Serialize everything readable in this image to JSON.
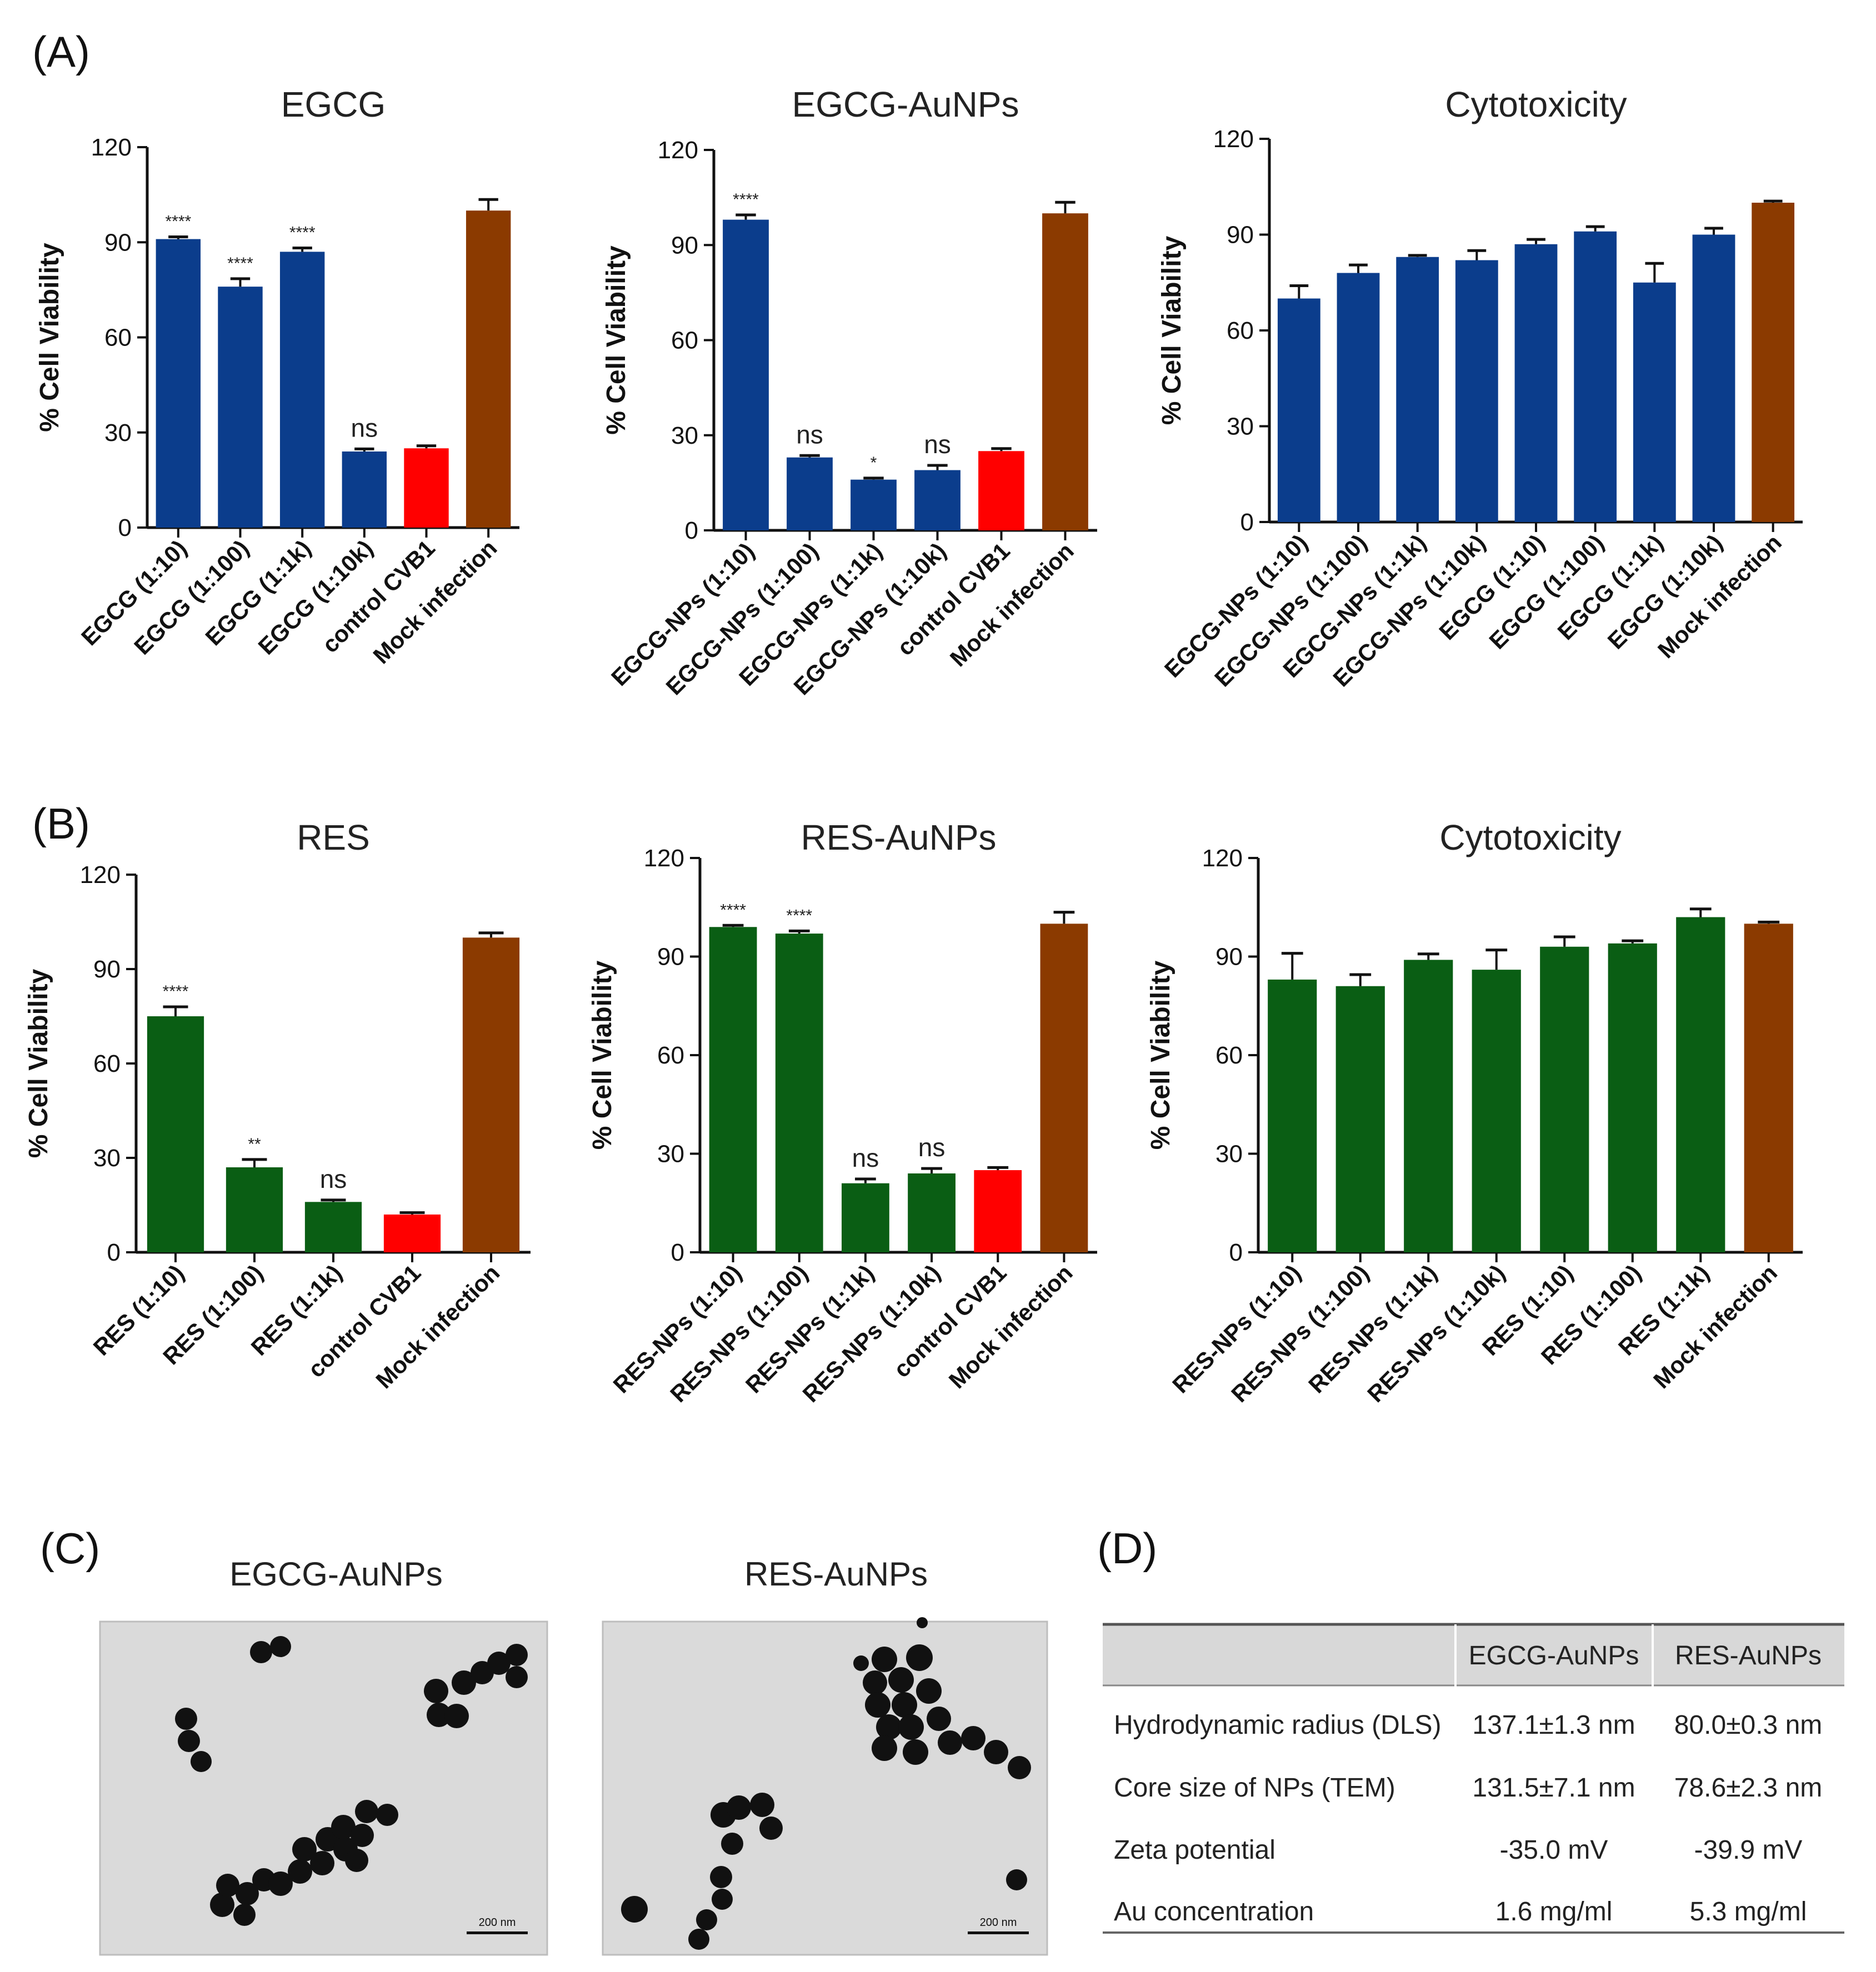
{
  "panels": {
    "a": "(A)",
    "b": "(B)",
    "c": "(C)",
    "d": "(D)"
  },
  "chart_data": [
    {
      "type": "bar",
      "title": "EGCG",
      "ylabel": "% Cell Viability",
      "ylim": [
        0,
        120
      ],
      "yticks": [
        0,
        30,
        60,
        90,
        120
      ],
      "categories": [
        "EGCG (1:10)",
        "EGCG (1:100)",
        "EGCG (1:1k)",
        "EGCG (1:10k)",
        "control CVB1",
        "Mock infection"
      ],
      "values": [
        91,
        76,
        87,
        24,
        25,
        100
      ],
      "errors": [
        0.7,
        2.5,
        1.2,
        0.8,
        0.8,
        3.5
      ],
      "bar_colors": [
        "#0b3d8c",
        "#0b3d8c",
        "#0b3d8c",
        "#0b3d8c",
        "#ff0000",
        "#8b3a00"
      ],
      "annotations": [
        "****",
        "****",
        "****",
        "ns",
        "",
        ""
      ]
    },
    {
      "type": "bar",
      "title": "EGCG-AuNPs",
      "ylabel": "% Cell Viability",
      "ylim": [
        0,
        120
      ],
      "yticks": [
        0,
        30,
        60,
        90,
        120
      ],
      "categories": [
        "EGCG-NPs (1:10)",
        "EGCG-NPs (1:100)",
        "EGCG-NPs (1:1k)",
        "EGCG-NPs (1:10k)",
        "control CVB1",
        "Mock infection"
      ],
      "values": [
        98,
        23,
        16,
        19,
        25,
        100
      ],
      "errors": [
        1.5,
        0.6,
        0.5,
        1.5,
        0.8,
        3.5
      ],
      "bar_colors": [
        "#0b3d8c",
        "#0b3d8c",
        "#0b3d8c",
        "#0b3d8c",
        "#ff0000",
        "#8b3a00"
      ],
      "annotations": [
        "****",
        "ns",
        "*",
        "ns",
        "",
        ""
      ]
    },
    {
      "type": "bar",
      "title": "Cytotoxicity",
      "ylabel": "% Cell Viability",
      "ylim": [
        0,
        120
      ],
      "yticks": [
        0,
        30,
        60,
        90,
        120
      ],
      "categories": [
        "EGCG-NPs (1:10)",
        "EGCG-NPs (1:100)",
        "EGCG-NPs (1:1k)",
        "EGCG-NPs (1:10k)",
        "EGCG (1:10)",
        "EGCG (1:100)",
        "EGCG (1:1k)",
        "EGCG (1:10k)",
        "Mock infection"
      ],
      "values": [
        70,
        78,
        83,
        82,
        87,
        91,
        75,
        90,
        100
      ],
      "errors": [
        4,
        2.5,
        0.5,
        3,
        1.5,
        1.5,
        6,
        2,
        0.5
      ],
      "bar_colors": [
        "#0b3d8c",
        "#0b3d8c",
        "#0b3d8c",
        "#0b3d8c",
        "#0b3d8c",
        "#0b3d8c",
        "#0b3d8c",
        "#0b3d8c",
        "#8b3a00"
      ],
      "annotations": [
        "",
        "",
        "",
        "",
        "",
        "",
        "",
        "",
        ""
      ]
    },
    {
      "type": "bar",
      "title": "RES",
      "ylabel": "% Cell Viability",
      "ylim": [
        0,
        120
      ],
      "yticks": [
        0,
        30,
        60,
        90,
        120
      ],
      "categories": [
        "RES (1:10)",
        "RES (1:100)",
        "RES (1:1k)",
        "control CVB1",
        "Mock infection"
      ],
      "values": [
        75,
        27,
        16,
        12,
        100
      ],
      "errors": [
        3,
        2.5,
        0.6,
        0.6,
        1.5
      ],
      "bar_colors": [
        "#0a5e14",
        "#0a5e14",
        "#0a5e14",
        "#ff0000",
        "#8b3a00"
      ],
      "annotations": [
        "****",
        "**",
        "ns",
        "",
        ""
      ]
    },
    {
      "type": "bar",
      "title": "RES-AuNPs",
      "ylabel": "% Cell Viability",
      "ylim": [
        0,
        120
      ],
      "yticks": [
        0,
        30,
        60,
        90,
        120
      ],
      "categories": [
        "RES-NPs (1:10)",
        "RES-NPs (1:100)",
        "RES-NPs (1:1k)",
        "RES-NPs (1:10k)",
        "control CVB1",
        "Mock infection"
      ],
      "values": [
        99,
        97,
        21,
        24,
        25,
        100
      ],
      "errors": [
        0.5,
        0.8,
        1.3,
        1.5,
        0.8,
        3.5
      ],
      "bar_colors": [
        "#0a5e14",
        "#0a5e14",
        "#0a5e14",
        "#0a5e14",
        "#ff0000",
        "#8b3a00"
      ],
      "annotations": [
        "****",
        "****",
        "ns",
        "ns",
        "",
        ""
      ]
    },
    {
      "type": "bar",
      "title": "Cytotoxicity",
      "ylabel": "% Cell Viability",
      "ylim": [
        0,
        120
      ],
      "yticks": [
        0,
        30,
        60,
        90,
        120
      ],
      "categories": [
        "RES-NPs (1:10)",
        "RES-NPs (1:100)",
        "RES-NPs (1:1k)",
        "RES-NPs (1:10k)",
        "RES (1:10)",
        "RES (1:100)",
        "RES (1:1k)",
        "Mock infection"
      ],
      "values": [
        83,
        81,
        89,
        86,
        93,
        94,
        102,
        100
      ],
      "errors": [
        8,
        3.5,
        1.8,
        6,
        3,
        0.8,
        2.5,
        0.5
      ],
      "bar_colors": [
        "#0a5e14",
        "#0a5e14",
        "#0a5e14",
        "#0a5e14",
        "#0a5e14",
        "#0a5e14",
        "#0a5e14",
        "#8b3a00"
      ],
      "annotations": [
        "",
        "",
        "",
        "",
        "",
        "",
        "",
        ""
      ]
    }
  ],
  "tem": [
    {
      "title": "EGCG-AuNPs",
      "scale_bar": "200 nm"
    },
    {
      "title": "RES-AuNPs",
      "scale_bar": "200 nm"
    }
  ],
  "table": {
    "headers": [
      "",
      "EGCG-AuNPs",
      "RES-AuNPs"
    ],
    "rows": [
      [
        "Hydrodynamic radius (DLS)",
        "137.1±1.3 nm",
        "80.0±0.3 nm"
      ],
      [
        "Core size of NPs (TEM)",
        "131.5±7.1 nm",
        "78.6±2.3 nm"
      ],
      [
        "Zeta potential",
        "-35.0 mV",
        "-39.9 mV"
      ],
      [
        "Au concentration",
        "1.6 mg/ml",
        "5.3 mg/ml"
      ]
    ]
  }
}
